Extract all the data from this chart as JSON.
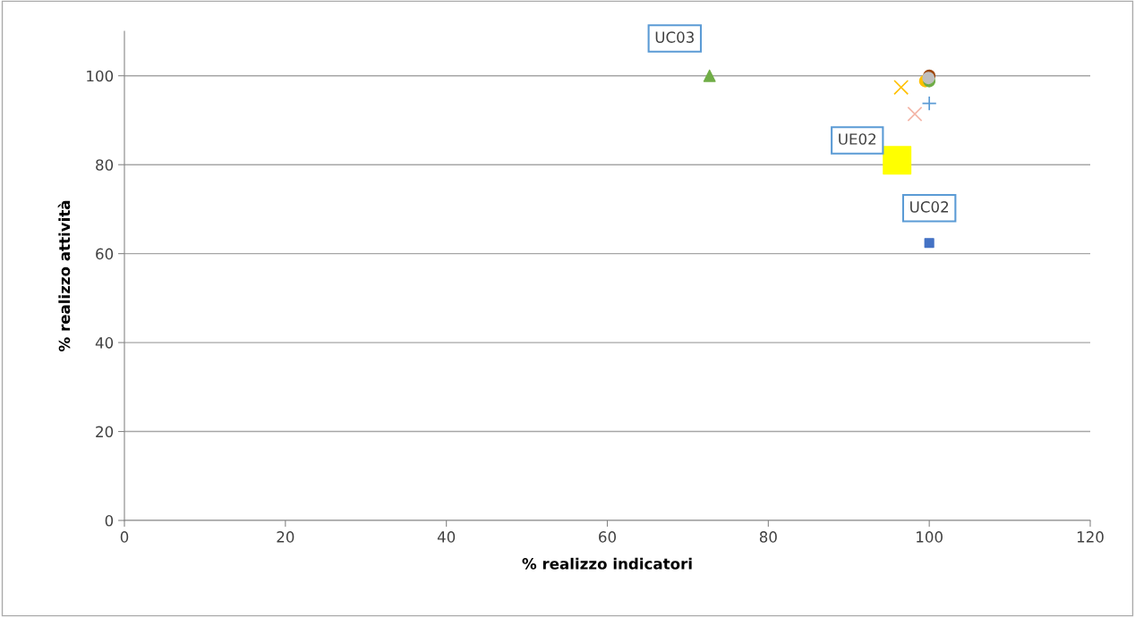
{
  "chart_data": {
    "type": "scatter",
    "xlabel": "% realizzo indicatori",
    "ylabel": "% realizzo attività",
    "xlim": [
      0,
      120
    ],
    "xticks": [
      0,
      20,
      40,
      60,
      80,
      100,
      120
    ],
    "ylim": [
      0,
      110
    ],
    "yticks": [
      0,
      20,
      40,
      60,
      80,
      100
    ],
    "grid": "y",
    "legend": false,
    "series": [
      {
        "color": "#70ad47",
        "marker": "triangle",
        "x": [
          72.7
        ],
        "values": [
          100
        ]
      },
      {
        "color": "#ffff00",
        "marker": "square",
        "x": [
          96
        ],
        "values": [
          81
        ]
      },
      {
        "color": "#4472c4",
        "marker": "square",
        "x": [
          100
        ],
        "values": [
          62.4
        ]
      },
      {
        "color": "#ffc000",
        "marker": "cross",
        "x": [
          96.5
        ],
        "values": [
          97.4
        ]
      },
      {
        "color": "#f4b6a8",
        "marker": "cross",
        "x": [
          98.2
        ],
        "values": [
          91.4
        ]
      },
      {
        "color": "#5b9bd5",
        "marker": "plus",
        "x": [
          100
        ],
        "values": [
          93.8
        ]
      },
      {
        "color": "#9e480e",
        "marker": "circle",
        "x": [
          100
        ],
        "values": [
          100
        ]
      },
      {
        "color": "#ffc000",
        "marker": "circle",
        "x": [
          99.5
        ],
        "values": [
          98.8
        ]
      },
      {
        "color": "#70ad47",
        "marker": "circle",
        "x": [
          100
        ],
        "values": [
          98.8
        ]
      },
      {
        "color": "#bfbfbf",
        "marker": "circle",
        "x": [
          99.9
        ],
        "values": [
          99.5
        ]
      }
    ],
    "annotations": [
      {
        "text": "UC03",
        "x": 72.7,
        "y": 100
      },
      {
        "text": "UE02",
        "x": 96,
        "y": 81
      },
      {
        "text": "UC02",
        "x": 100,
        "y": 62.4
      }
    ]
  }
}
